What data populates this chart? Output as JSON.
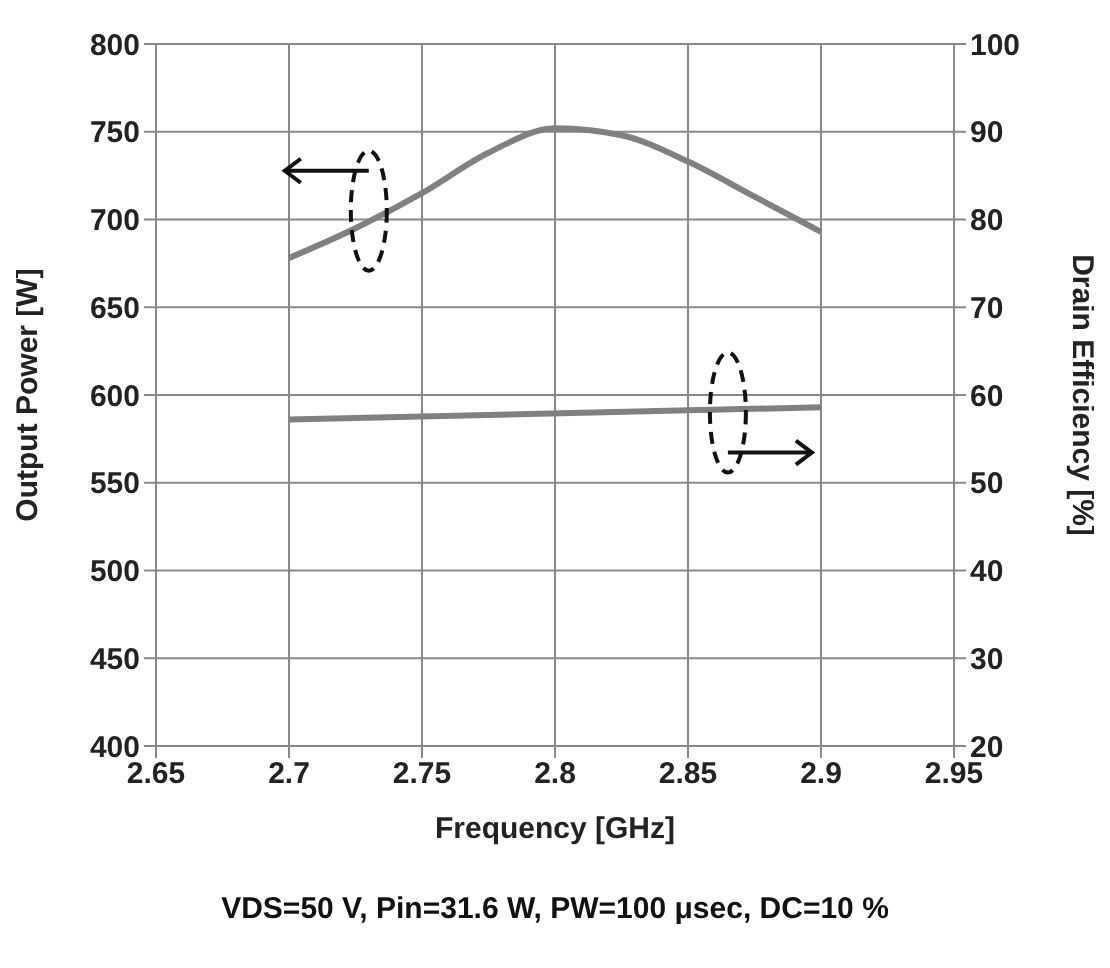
{
  "chart_data": {
    "type": "line",
    "xlabel": "Frequency [GHz]",
    "ylabel": "Output Power [W]",
    "y2label": "Drain Efficiency [%]",
    "xlim": [
      2.65,
      2.95
    ],
    "xticks": [
      2.65,
      2.7,
      2.75,
      2.8,
      2.85,
      2.9,
      2.95
    ],
    "ylim": [
      400,
      800
    ],
    "yticks": [
      400,
      450,
      500,
      550,
      600,
      650,
      700,
      750,
      800
    ],
    "y2lim": [
      20,
      100
    ],
    "y2ticks": [
      20,
      30,
      40,
      50,
      60,
      70,
      80,
      90,
      100
    ],
    "grid": true,
    "series": [
      {
        "color": "#808080",
        "x": [
          2.7,
          2.725,
          2.75,
          2.775,
          2.8,
          2.825,
          2.85,
          2.875,
          2.9
        ],
        "values": [
          678,
          695,
          715,
          738,
          752,
          748,
          733,
          713,
          693
        ]
      },
      {
        "color": "#808080",
        "axis": "y2",
        "x": [
          2.7,
          2.9
        ],
        "values": [
          57.2,
          58.6
        ]
      }
    ],
    "annotations": [
      "VDS=50 V, Pin=31.6 W, PW=100 μsec, DC=10 %"
    ]
  }
}
